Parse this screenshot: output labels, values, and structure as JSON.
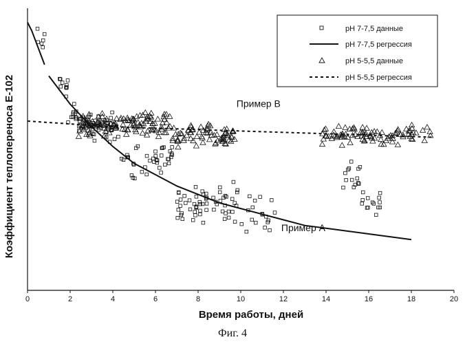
{
  "chart_data": {
    "type": "scatter",
    "xlabel": "Время работы, дней",
    "ylabel": "Коэффициент теплопереноса Е-102",
    "xlim": [
      0,
      20
    ],
    "x_ticks": [
      "0",
      "2",
      "4",
      "6",
      "8",
      "10",
      "12",
      "14",
      "16",
      "18",
      "20"
    ],
    "y_ticks_labeled": false,
    "legend_position": "top-right",
    "legend": [
      {
        "label": "pH 7-7,5 данные",
        "marker": "square"
      },
      {
        "label": "pH 7-7,5 регрессия",
        "line": "solid"
      },
      {
        "label": "pH 5-5,5 данные",
        "marker": "triangle"
      },
      {
        "label": "pH 5-5,5 регрессия",
        "line": "dashed"
      }
    ],
    "annotations": [
      {
        "text": "Пример В",
        "x": 9.8,
        "y": 0.65
      },
      {
        "text": "Пример А",
        "x": 11.9,
        "y": 0.21
      }
    ],
    "series": [
      {
        "label_ref": 0,
        "kind": "scatter",
        "marker": "square",
        "clusters": [
          {
            "x": [
              0.4,
              0.8
            ],
            "y_center": 0.88,
            "spread": 0.05,
            "n": 6
          },
          {
            "x": [
              1.4,
              1.9
            ],
            "y_center": 0.73,
            "spread": 0.04,
            "n": 10
          },
          {
            "x": [
              1.9,
              2.5
            ],
            "y_center": 0.63,
            "spread": 0.05,
            "n": 14
          },
          {
            "x": [
              2.4,
              4.3
            ],
            "y_center": 0.58,
            "spread": 0.04,
            "n": 45
          },
          {
            "x": [
              4.4,
              6.8
            ],
            "y_center": 0.46,
            "spread": 0.05,
            "n": 40
          },
          {
            "x": [
              7.0,
              9.9
            ],
            "y_center": 0.31,
            "spread": 0.05,
            "n": 60
          },
          {
            "x": [
              10.0,
              11.6
            ],
            "y_center": 0.27,
            "spread": 0.06,
            "n": 18
          },
          {
            "x": [
              14.8,
              15.6
            ],
            "y_center": 0.38,
            "spread": 0.05,
            "n": 14
          },
          {
            "x": [
              15.6,
              16.6
            ],
            "y_center": 0.31,
            "spread": 0.04,
            "n": 14
          }
        ]
      },
      {
        "label_ref": 1,
        "kind": "line",
        "style": "solid",
        "segments": [
          {
            "x": [
              0,
              0.2,
              0.4,
              0.6,
              0.8
            ],
            "y": [
              0.95,
              0.92,
              0.88,
              0.84,
              0.8
            ]
          },
          {
            "x": [
              1.0,
              2,
              3,
              4,
              5,
              6,
              7,
              8,
              9,
              10,
              11,
              12,
              13,
              14,
              15,
              16,
              17,
              18
            ],
            "y": [
              0.76,
              0.66,
              0.58,
              0.51,
              0.45,
              0.41,
              0.37,
              0.34,
              0.31,
              0.29,
              0.27,
              0.25,
              0.23,
              0.22,
              0.21,
              0.2,
              0.19,
              0.18
            ]
          }
        ]
      },
      {
        "label_ref": 2,
        "kind": "scatter",
        "marker": "triangle",
        "clusters": [
          {
            "x": [
              2.4,
              6.8
            ],
            "y_center": 0.59,
            "spread": 0.03,
            "n": 120
          },
          {
            "x": [
              6.8,
              9.8
            ],
            "y_center": 0.55,
            "spread": 0.03,
            "n": 70
          },
          {
            "x": [
              13.8,
              18.9
            ],
            "y_center": 0.55,
            "spread": 0.025,
            "n": 90
          }
        ]
      },
      {
        "label_ref": 3,
        "kind": "line",
        "style": "dashed",
        "segments": [
          {
            "x": [
              0,
              2,
              4,
              6,
              8,
              10,
              12,
              14,
              16,
              18,
              19
            ],
            "y": [
              0.6,
              0.59,
              0.58,
              0.575,
              0.57,
              0.565,
              0.56,
              0.555,
              0.55,
              0.545,
              0.543
            ]
          }
        ]
      }
    ]
  },
  "caption": "Фиг. 4"
}
